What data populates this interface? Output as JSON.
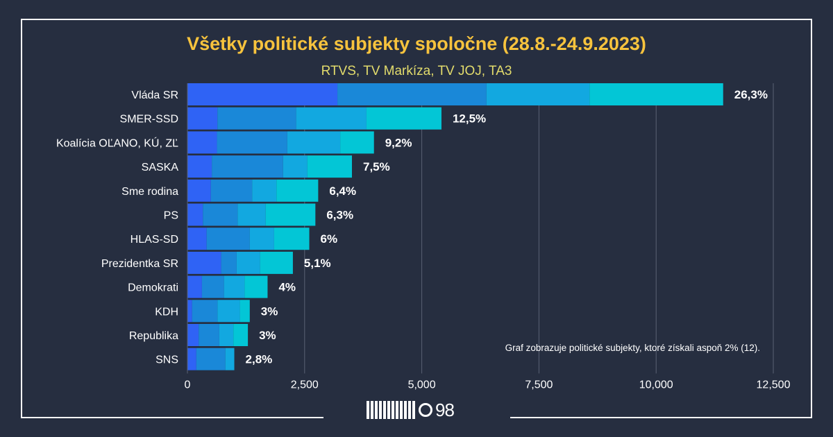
{
  "chart_data": {
    "type": "bar",
    "orientation": "horizontal",
    "stacked": true,
    "title": "Všetky politické subjekty spoločne (28.8.-24.9.2023)",
    "subtitle": "RTVS, TV Markíza, TV JOJ, TA3",
    "note": "Graf zobrazuje politické subjekty, ktoré získali aspoň 2% (12).",
    "categories": [
      "Vláda SR",
      "SMER-SSD",
      "Koalícia OĽANO, KÚ, ZĽ",
      "SASKA",
      "Sme rodina",
      "PS",
      "HLAS-SD",
      "Prezidentka SR",
      "Demokrati",
      "KDH",
      "Republika",
      "SNS"
    ],
    "percent_labels": [
      "26,3%",
      "12,5%",
      "9,2%",
      "7,5%",
      "6,4%",
      "6,3%",
      "6%",
      "5,1%",
      "4%",
      "3%",
      "3%",
      "2,8%"
    ],
    "series": [
      {
        "name": "RTVS",
        "color": "#2f63f5",
        "values": [
          3200,
          640,
          630,
          520,
          500,
          330,
          410,
          720,
          310,
          100,
          240,
          190
        ]
      },
      {
        "name": "TV Markíza",
        "color": "#1a88d8",
        "values": [
          3180,
          1680,
          1500,
          1520,
          880,
          740,
          920,
          330,
          470,
          540,
          440,
          620
        ]
      },
      {
        "name": "TV JOJ",
        "color": "#12a8e0",
        "values": [
          2200,
          1500,
          1130,
          520,
          520,
          600,
          520,
          500,
          440,
          480,
          300,
          190
        ]
      },
      {
        "name": "TA3",
        "color": "#03c6d6",
        "values": [
          2850,
          1600,
          720,
          950,
          890,
          1060,
          750,
          700,
          490,
          210,
          310,
          0
        ]
      }
    ],
    "x_ticks": [
      "0",
      "2,500",
      "5,000",
      "7,500",
      "10,000",
      "12,500"
    ],
    "xlim": [
      0,
      12500
    ],
    "grid": true
  },
  "logo": {
    "text": "98"
  },
  "colors": {
    "background": "#262e40",
    "title": "#f7c33d",
    "subtitle": "#e3dc6c"
  }
}
